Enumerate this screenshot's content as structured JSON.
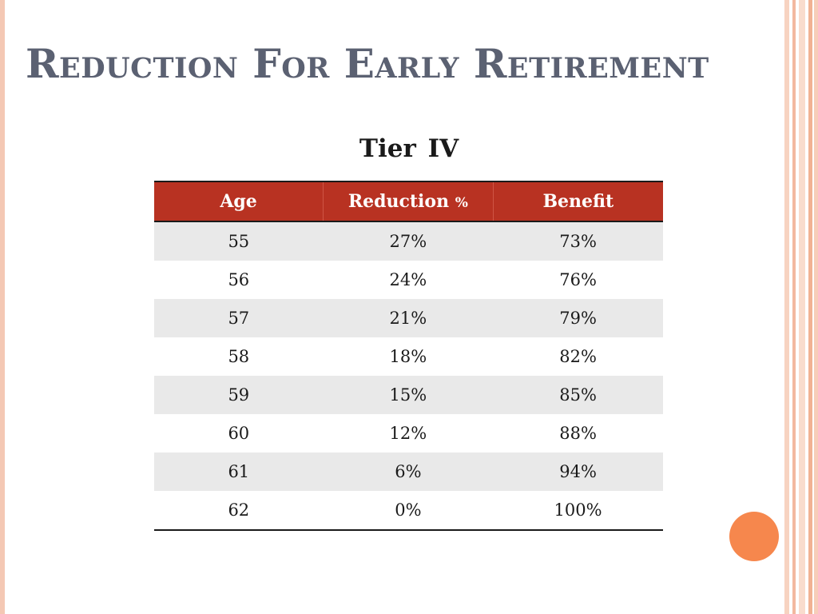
{
  "slide": {
    "title": "Reduction For Early Retirement",
    "subtitle": "Tier  IV"
  },
  "table": {
    "headers": {
      "age": "Age",
      "reduction": "Reduction",
      "reduction_unit": "%",
      "benefit": "Benefit"
    },
    "rows": [
      {
        "age": "55",
        "reduction": "27%",
        "benefit": "73%"
      },
      {
        "age": "56",
        "reduction": "24%",
        "benefit": "76%"
      },
      {
        "age": "57",
        "reduction": "21%",
        "benefit": "79%"
      },
      {
        "age": "58",
        "reduction": "18%",
        "benefit": "82%"
      },
      {
        "age": "59",
        "reduction": "15%",
        "benefit": "85%"
      },
      {
        "age": "60",
        "reduction": "12%",
        "benefit": "88%"
      },
      {
        "age": "61",
        "reduction": "6%",
        "benefit": "94%"
      },
      {
        "age": "62",
        "reduction": "0%",
        "benefit": "100%"
      }
    ]
  },
  "colors": {
    "header_bg": "#b83222",
    "title_text": "#5b6172",
    "accent_dot": "#f6874d",
    "border_tint": "#f4c8b4"
  }
}
